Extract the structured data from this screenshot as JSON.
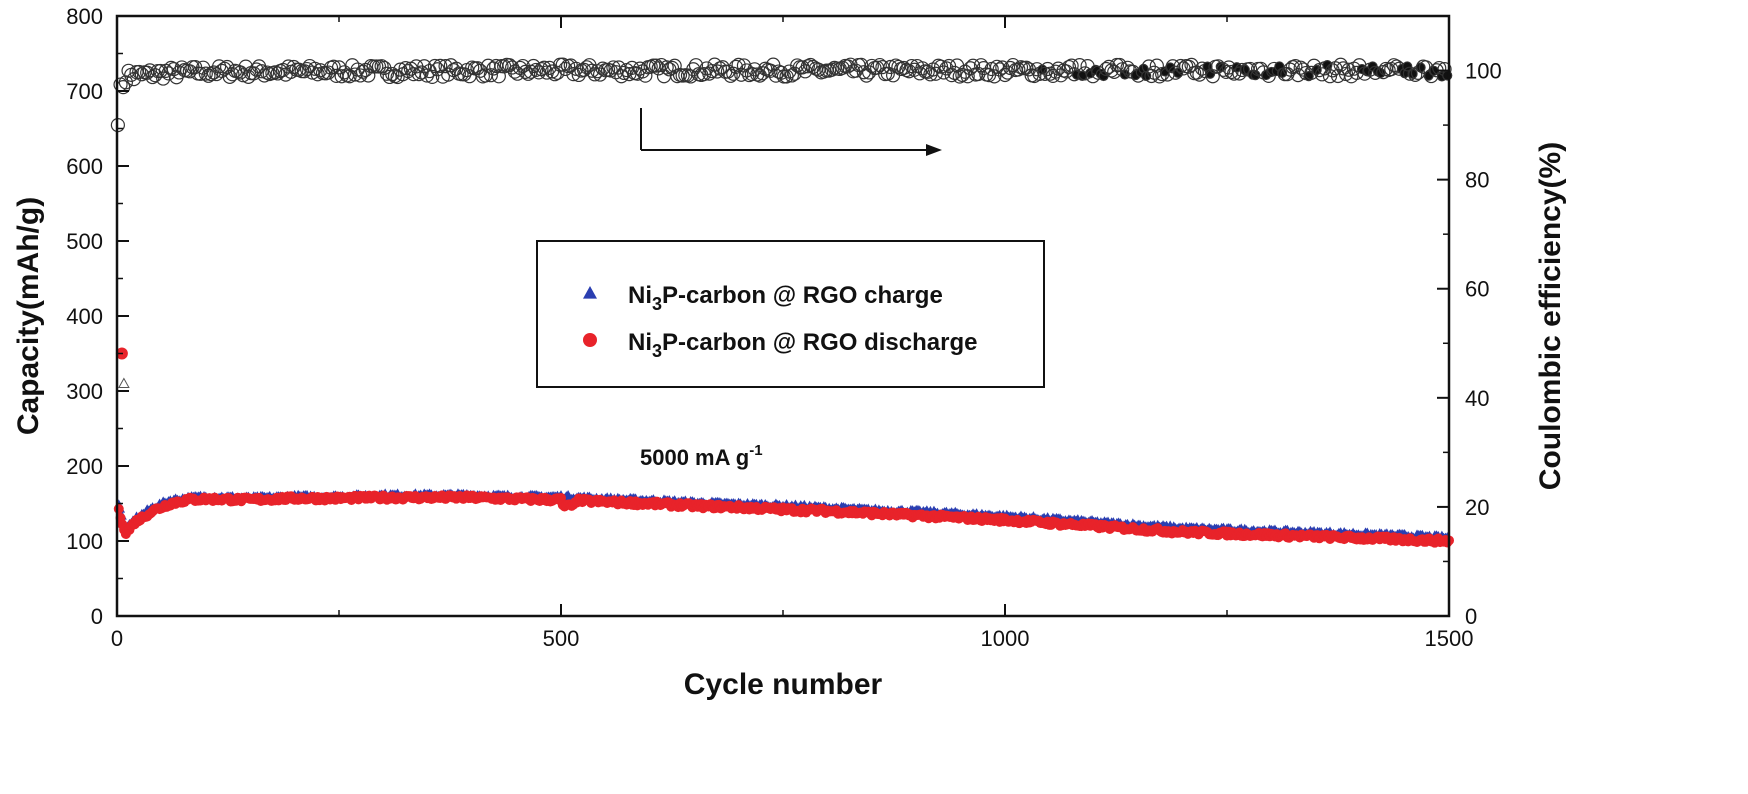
{
  "chart_data": {
    "type": "scatter",
    "xlabel": "Cycle number",
    "ylabel": "Capacity(mAh/g)",
    "ylabel_right": "Coulombic efficiency(%)",
    "xlim": [
      0,
      1500
    ],
    "ylim": [
      0,
      800
    ],
    "ylim_right": [
      0,
      110
    ],
    "x_ticks": [
      "0",
      "500",
      "1000",
      "1500"
    ],
    "y_ticks": [
      "0",
      "100",
      "200",
      "300",
      "400",
      "500",
      "600",
      "700",
      "800"
    ],
    "y_ticks_right": [
      "0",
      "20",
      "40",
      "60",
      "80",
      "100"
    ],
    "annotation": {
      "text": "5000 mA g",
      "sup": "-1"
    },
    "legend": [
      {
        "name_pre": "Ni",
        "name_sub": "3",
        "name_post": "P-carbon @ RGO charge",
        "color": "#2a3eb1",
        "marker": "triangle"
      },
      {
        "name_pre": "Ni",
        "name_sub": "3",
        "name_post": "P-carbon @ RGO discharge",
        "color": "#e8232a",
        "marker": "circle"
      }
    ],
    "series": [
      {
        "name": "Ni3P-carbon @ RGO charge",
        "axis": "left",
        "color": "#2a3eb1",
        "first_point": {
          "x": 1,
          "y": 310
        },
        "x": [
          2,
          10,
          20,
          40,
          60,
          80,
          100,
          150,
          200,
          250,
          300,
          350,
          400,
          450,
          500,
          550,
          600,
          650,
          700,
          750,
          800,
          850,
          900,
          950,
          1000,
          1050,
          1100,
          1150,
          1200,
          1250,
          1300,
          1350,
          1400,
          1450,
          1500
        ],
        "values": [
          150,
          115,
          130,
          145,
          155,
          158,
          160,
          158,
          160,
          160,
          162,
          162,
          162,
          160,
          160,
          157,
          155,
          152,
          150,
          148,
          145,
          142,
          140,
          137,
          134,
          130,
          126,
          122,
          118,
          116,
          114,
          112,
          110,
          108,
          105
        ]
      },
      {
        "name": "Ni3P-carbon @ RGO discharge",
        "axis": "left",
        "color": "#e8232a",
        "first_point": {
          "x": 1,
          "y": 350
        },
        "x": [
          2,
          10,
          20,
          40,
          60,
          80,
          100,
          150,
          200,
          250,
          300,
          350,
          400,
          450,
          500,
          550,
          600,
          650,
          700,
          750,
          800,
          850,
          900,
          950,
          1000,
          1050,
          1100,
          1150,
          1200,
          1250,
          1300,
          1350,
          1400,
          1450,
          1500
        ],
        "values": [
          140,
          110,
          125,
          140,
          150,
          155,
          156,
          155,
          157,
          157,
          158,
          158,
          158,
          156,
          155,
          152,
          150,
          147,
          145,
          142,
          140,
          137,
          134,
          131,
          128,
          124,
          120,
          116,
          112,
          110,
          108,
          106,
          104,
          102,
          100
        ]
      },
      {
        "name": "Coulombic efficiency",
        "axis": "right",
        "color": "#222222",
        "x": [
          1,
          5,
          10,
          50,
          100,
          500,
          1000,
          1040,
          1500
        ],
        "values": [
          92,
          97,
          99,
          99.5,
          99.8,
          100,
          100,
          100,
          100
        ]
      }
    ]
  }
}
